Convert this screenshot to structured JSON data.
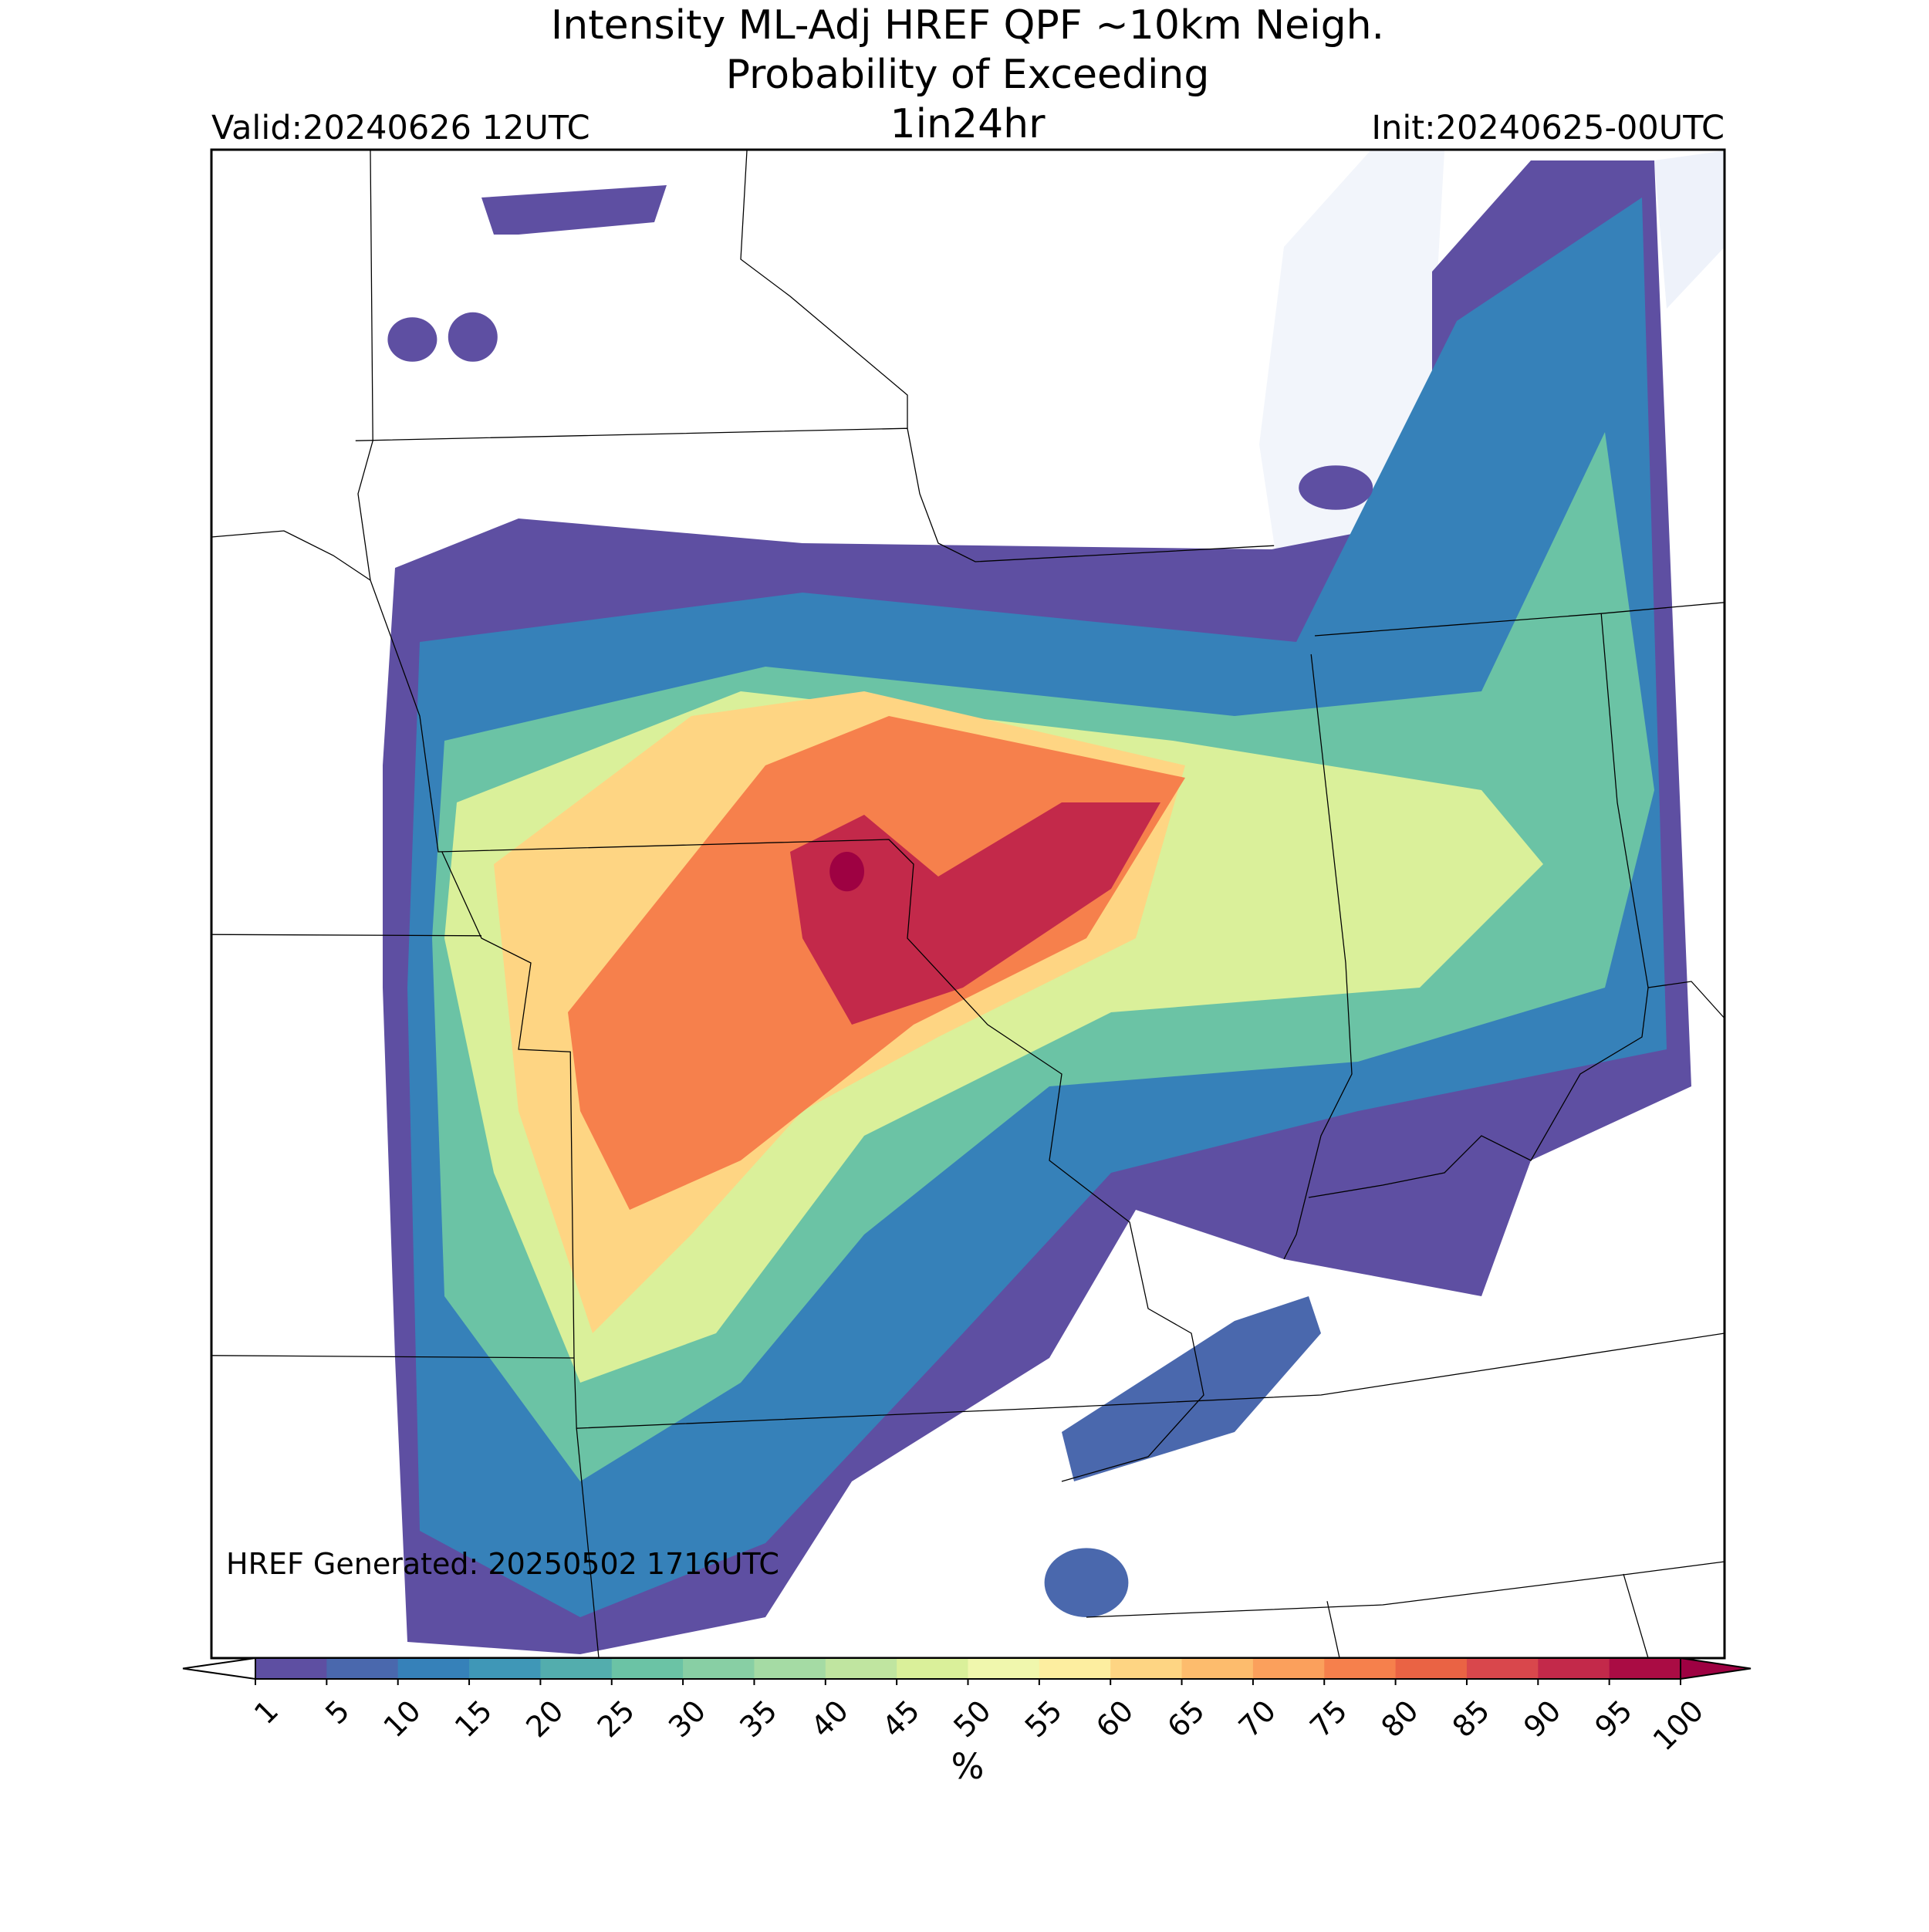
{
  "header": {
    "title_lines": [
      "Intensity ML-Adj HREF QPF ~10km Neigh.",
      "Probability of Exceeding",
      "1in24hr"
    ],
    "valid": "Valid:20240626 12UTC",
    "init": "Init:20240625-00UTC"
  },
  "footer_note": "HREF Generated: 20250502 1716UTC",
  "colorbar": {
    "label": "%",
    "ticks": [
      1,
      5,
      10,
      15,
      20,
      25,
      30,
      35,
      40,
      45,
      50,
      55,
      60,
      65,
      70,
      75,
      80,
      85,
      90,
      95,
      100
    ],
    "colors": [
      "#5e4fa2",
      "#4a68ad",
      "#3681b9",
      "#3f97b7",
      "#53adad",
      "#6bc3a5",
      "#88cfa4",
      "#a5dba4",
      "#c0e5a0",
      "#daf09a",
      "#f0f7ad",
      "#fdeea0",
      "#fed583",
      "#fdbc6d",
      "#fba05c",
      "#f6804c",
      "#ea6344",
      "#d9474c",
      "#c3294a",
      "#aa0c44"
    ],
    "under_color": "#ffffff",
    "over_color": "#9e0142"
  }
}
